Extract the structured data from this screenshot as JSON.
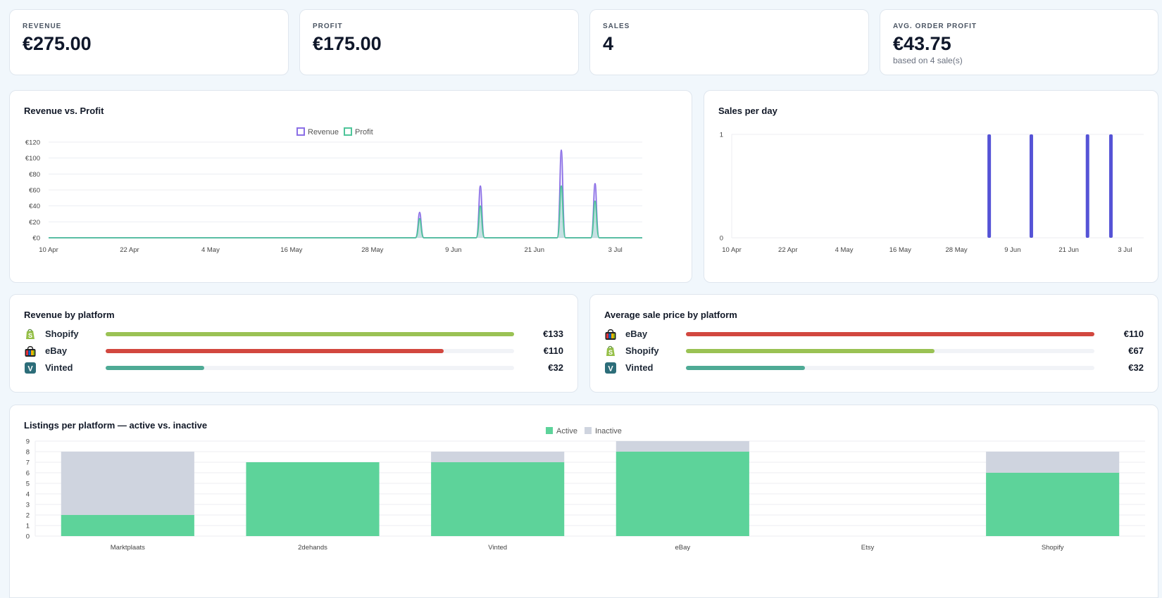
{
  "kpis": [
    {
      "label": "REVENUE",
      "value": "€275.00",
      "sub": ""
    },
    {
      "label": "PROFIT",
      "value": "€175.00",
      "sub": ""
    },
    {
      "label": "SALES",
      "value": "4",
      "sub": ""
    },
    {
      "label": "AVG. ORDER PROFIT",
      "value": "€43.75",
      "sub": "based on 4 sale(s)"
    }
  ],
  "revenue_profit": {
    "title": "Revenue vs. Profit",
    "legend": [
      "Revenue",
      "Profit"
    ],
    "colors": {
      "revenue": "#8b6fe6",
      "profit": "#4fc59a"
    },
    "y_ticks": [
      "€0",
      "€20",
      "€40",
      "€60",
      "€80",
      "€100",
      "€120"
    ],
    "x_ticks": [
      "10 Apr",
      "22 Apr",
      "4 May",
      "16 May",
      "28 May",
      "9 Jun",
      "21 Jun",
      "3 Jul"
    ]
  },
  "sales_per_day": {
    "title": "Sales per day",
    "y_ticks": [
      "0",
      "1"
    ],
    "x_ticks": [
      "10 Apr",
      "22 Apr",
      "4 May",
      "16 May",
      "28 May",
      "9 Jun",
      "21 Jun",
      "3 Jul"
    ],
    "color": "#5553d6"
  },
  "revenue_by_platform": {
    "title": "Revenue by platform",
    "rows": [
      {
        "name": "Shopify",
        "icon": "shopify-icon",
        "value": 133,
        "label": "€133",
        "color": "#9ac254"
      },
      {
        "name": "eBay",
        "icon": "ebay-icon",
        "value": 110,
        "label": "€110",
        "color": "#d2473f"
      },
      {
        "name": "Vinted",
        "icon": "vinted-icon",
        "value": 32,
        "label": "€32",
        "color": "#4eaa95"
      }
    ]
  },
  "avg_price_by_platform": {
    "title": "Average sale price by platform",
    "rows": [
      {
        "name": "eBay",
        "icon": "ebay-icon",
        "value": 110,
        "label": "€110",
        "color": "#d2473f"
      },
      {
        "name": "Shopify",
        "icon": "shopify-icon",
        "value": 67,
        "label": "€67",
        "color": "#9ac254"
      },
      {
        "name": "Vinted",
        "icon": "vinted-icon",
        "value": 32,
        "label": "€32",
        "color": "#4eaa95"
      }
    ]
  },
  "listings": {
    "title": "Listings per platform — active vs. inactive",
    "legend": [
      "Active",
      "Inactive"
    ],
    "colors": {
      "active": "#5dd39a",
      "inactive": "#cfd4df"
    }
  },
  "chart_data": [
    {
      "type": "line",
      "title": "Revenue vs. Profit",
      "x": [
        "4 Jun",
        "13 Jun",
        "25 Jun",
        "30 Jun"
      ],
      "x_range": [
        "10 Apr",
        "7 Jul"
      ],
      "series": [
        {
          "name": "Revenue",
          "values": [
            32,
            65,
            110,
            68
          ]
        },
        {
          "name": "Profit",
          "values": [
            24,
            40,
            65,
            46
          ]
        }
      ],
      "ylim": [
        0,
        120
      ],
      "legend": "top-center",
      "grid": true
    },
    {
      "type": "bar",
      "title": "Sales per day",
      "x": [
        "4 Jun",
        "13 Jun",
        "25 Jun",
        "30 Jun"
      ],
      "x_range": [
        "10 Apr",
        "7 Jul"
      ],
      "values": [
        1,
        1,
        1,
        1
      ],
      "ylim": [
        0,
        1
      ],
      "grid": true
    },
    {
      "type": "bar",
      "title": "Listings per platform — active vs. inactive",
      "categories": [
        "Marktplaats",
        "2dehands",
        "Vinted",
        "eBay",
        "Etsy",
        "Shopify"
      ],
      "series": [
        {
          "name": "Active",
          "values": [
            2,
            7,
            7,
            8,
            0,
            6
          ]
        },
        {
          "name": "Inactive",
          "values": [
            6,
            0,
            1,
            1,
            0,
            2
          ]
        }
      ],
      "stacked": true,
      "ylim": [
        0,
        9
      ],
      "legend": "top-center",
      "grid": true
    }
  ]
}
